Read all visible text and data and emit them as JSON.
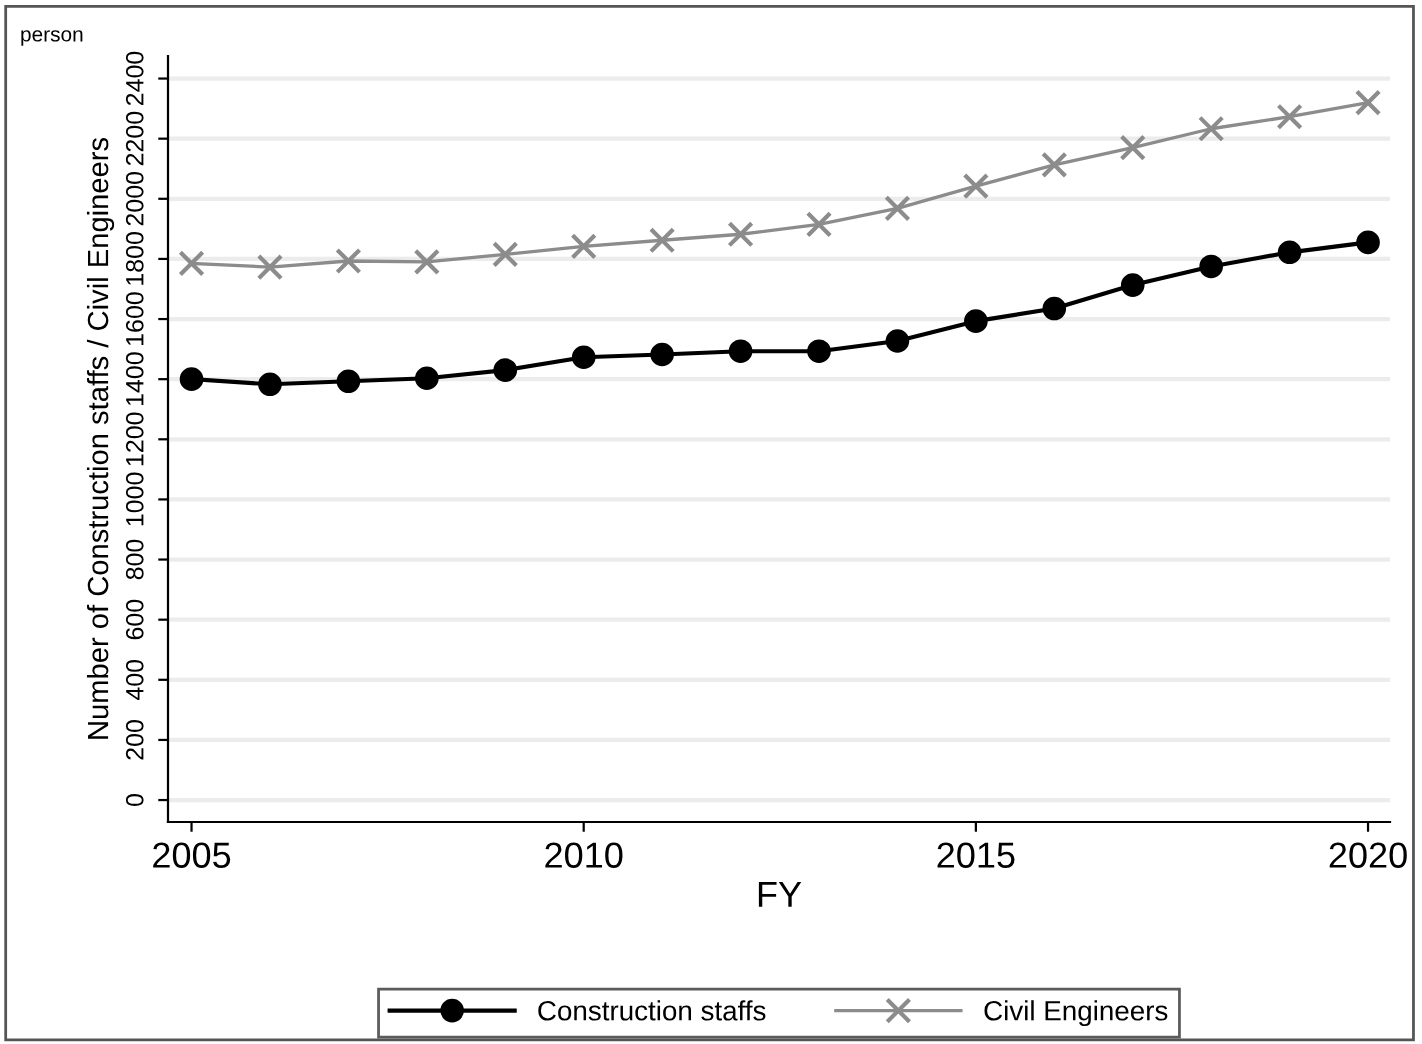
{
  "chart_data": {
    "type": "line",
    "xlabel": "FY",
    "ylabel": "Number of Construction staffs / Civil Engineers",
    "annotations": [
      "person"
    ],
    "x": [
      2005,
      2006,
      2007,
      2008,
      2009,
      2010,
      2011,
      2012,
      2013,
      2014,
      2015,
      2016,
      2017,
      2018,
      2019,
      2020
    ],
    "series": [
      {
        "name": "Construction staffs",
        "color": "#000000",
        "marker": "circle",
        "values": [
          1400,
          1383,
          1393,
          1403,
          1430,
          1473,
          1482,
          1493,
          1493,
          1527,
          1593,
          1635,
          1713,
          1775,
          1822,
          1855
        ]
      },
      {
        "name": "Civil Engineers",
        "color": "#8c8c8c",
        "marker": "cross",
        "values": [
          1785,
          1773,
          1793,
          1790,
          1815,
          1842,
          1862,
          1882,
          1915,
          1968,
          2042,
          2113,
          2170,
          2233,
          2273,
          2320
        ]
      }
    ],
    "xlim": [
      2004.7,
      2020.28
    ],
    "xticks": [
      2005,
      2010,
      2015,
      2020
    ],
    "ylim": [
      -73,
      2475
    ],
    "yticks": [
      0,
      200,
      400,
      600,
      800,
      1000,
      1200,
      1400,
      1600,
      1800,
      2000,
      2200,
      2400
    ],
    "grid": "y",
    "legend": "bottom",
    "line_style": "solid"
  }
}
